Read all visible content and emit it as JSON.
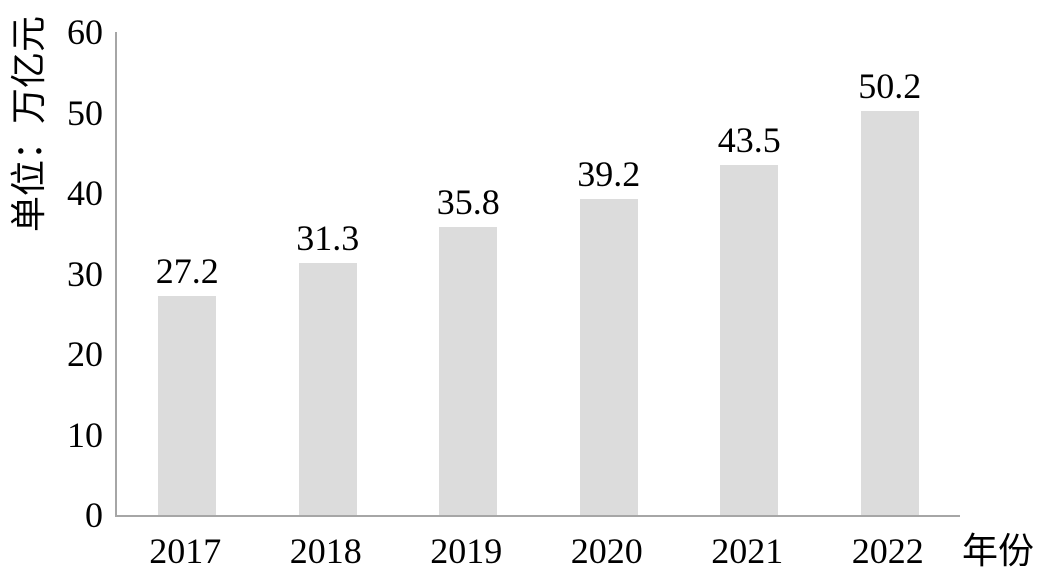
{
  "chart_data": {
    "type": "bar",
    "categories": [
      "2017",
      "2018",
      "2019",
      "2020",
      "2021",
      "2022"
    ],
    "values": [
      27.2,
      31.3,
      35.8,
      39.2,
      43.5,
      50.2
    ],
    "value_labels": [
      "27.2",
      "31.3",
      "35.8",
      "39.2",
      "43.5",
      "50.2"
    ],
    "title": "",
    "ylabel": "单位：万亿元",
    "xlabel": "年份",
    "ylim": [
      0,
      60
    ],
    "yticks": [
      60,
      50,
      40,
      30,
      20,
      10,
      0
    ],
    "ytick_labels": [
      "60",
      "50",
      "40",
      "30",
      "20",
      "10",
      "0"
    ],
    "grid": false,
    "legend": "none",
    "bar_color": "#dcdcdc",
    "axis_color": "#a6a6a6",
    "text_color": "#000000"
  }
}
